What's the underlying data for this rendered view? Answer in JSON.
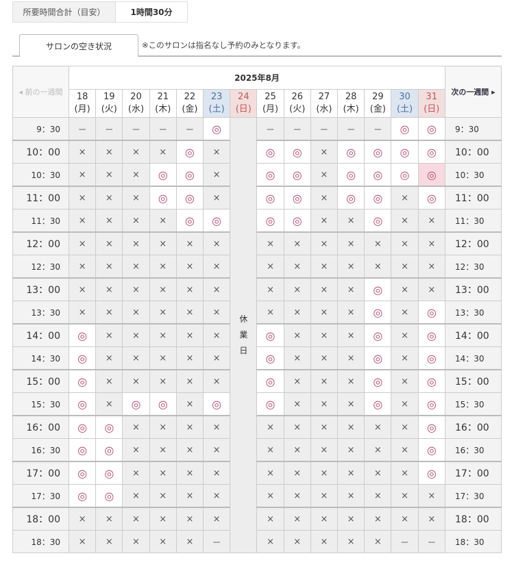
{
  "duration": {
    "label": "所要時間合計（目安）",
    "value": "1時間30分"
  },
  "tab": {
    "label": "サロンの空き状況",
    "note": "※このサロンは指名なし予約のみとなります。"
  },
  "calendar": {
    "month": "2025年8月",
    "prev_week": "◂ 前の一週間",
    "next_week": "次の一週間 ▸",
    "closed_label": "休業日",
    "closed_day": "24",
    "colors": {
      "available": "#b2486a",
      "saturday": "#4a6fa8",
      "sunday": "#c05656",
      "selected": "#f8d9e1"
    },
    "symbols": {
      "o": "◎",
      "x": "×",
      "-": "－"
    },
    "days": [
      {
        "date": "18",
        "dow": "(月)",
        "type": "weekday"
      },
      {
        "date": "19",
        "dow": "(火)",
        "type": "weekday"
      },
      {
        "date": "20",
        "dow": "(水)",
        "type": "weekday"
      },
      {
        "date": "21",
        "dow": "(木)",
        "type": "weekday"
      },
      {
        "date": "22",
        "dow": "(金)",
        "type": "weekday"
      },
      {
        "date": "23",
        "dow": "(土)",
        "type": "sat"
      },
      {
        "date": "24",
        "dow": "(日)",
        "type": "sun"
      },
      {
        "date": "25",
        "dow": "(月)",
        "type": "weekday"
      },
      {
        "date": "26",
        "dow": "(火)",
        "type": "weekday"
      },
      {
        "date": "27",
        "dow": "(水)",
        "type": "weekday"
      },
      {
        "date": "28",
        "dow": "(木)",
        "type": "weekday"
      },
      {
        "date": "29",
        "dow": "(金)",
        "type": "weekday"
      },
      {
        "date": "30",
        "dow": "(土)",
        "type": "sat"
      },
      {
        "date": "31",
        "dow": "(日)",
        "type": "sun"
      }
    ],
    "selected": {
      "time": "10：30",
      "date": "31"
    },
    "rows": [
      {
        "time": "9：30",
        "slots": [
          "-",
          "-",
          "-",
          "-",
          "-",
          "o",
          "-",
          "-",
          "-",
          "-",
          "-",
          "o",
          "o"
        ]
      },
      {
        "time": "10：00",
        "slots": [
          "x",
          "x",
          "x",
          "x",
          "o",
          "x",
          "o",
          "o",
          "x",
          "o",
          "o",
          "o",
          "o"
        ]
      },
      {
        "time": "10：30",
        "slots": [
          "x",
          "x",
          "x",
          "o",
          "o",
          "x",
          "o",
          "o",
          "x",
          "o",
          "o",
          "o",
          "o"
        ]
      },
      {
        "time": "11：00",
        "slots": [
          "x",
          "x",
          "x",
          "o",
          "o",
          "x",
          "o",
          "o",
          "x",
          "o",
          "o",
          "x",
          "o"
        ]
      },
      {
        "time": "11：30",
        "slots": [
          "x",
          "x",
          "x",
          "x",
          "o",
          "o",
          "o",
          "o",
          "x",
          "x",
          "o",
          "x",
          "x"
        ]
      },
      {
        "time": "12：00",
        "slots": [
          "x",
          "x",
          "x",
          "x",
          "x",
          "x",
          "x",
          "x",
          "x",
          "x",
          "x",
          "x",
          "x"
        ]
      },
      {
        "time": "12：30",
        "slots": [
          "x",
          "x",
          "x",
          "x",
          "x",
          "x",
          "x",
          "x",
          "x",
          "x",
          "x",
          "x",
          "x"
        ]
      },
      {
        "time": "13：00",
        "slots": [
          "x",
          "x",
          "x",
          "x",
          "x",
          "x",
          "x",
          "x",
          "x",
          "x",
          "o",
          "x",
          "x"
        ]
      },
      {
        "time": "13：30",
        "slots": [
          "x",
          "x",
          "x",
          "x",
          "x",
          "x",
          "x",
          "x",
          "x",
          "x",
          "o",
          "x",
          "o"
        ]
      },
      {
        "time": "14：00",
        "slots": [
          "o",
          "x",
          "x",
          "x",
          "x",
          "x",
          "o",
          "x",
          "x",
          "x",
          "o",
          "x",
          "o"
        ]
      },
      {
        "time": "14：30",
        "slots": [
          "o",
          "x",
          "x",
          "x",
          "x",
          "x",
          "o",
          "x",
          "x",
          "x",
          "o",
          "x",
          "o"
        ]
      },
      {
        "time": "15：00",
        "slots": [
          "o",
          "x",
          "x",
          "x",
          "x",
          "x",
          "o",
          "x",
          "x",
          "x",
          "o",
          "x",
          "o"
        ]
      },
      {
        "time": "15：30",
        "slots": [
          "o",
          "x",
          "o",
          "o",
          "x",
          "o",
          "o",
          "x",
          "x",
          "x",
          "o",
          "x",
          "o"
        ]
      },
      {
        "time": "16：00",
        "slots": [
          "o",
          "o",
          "x",
          "x",
          "x",
          "x",
          "x",
          "x",
          "x",
          "x",
          "x",
          "x",
          "o"
        ]
      },
      {
        "time": "16：30",
        "slots": [
          "o",
          "o",
          "x",
          "x",
          "x",
          "x",
          "x",
          "x",
          "x",
          "x",
          "x",
          "x",
          "o"
        ]
      },
      {
        "time": "17：00",
        "slots": [
          "o",
          "o",
          "x",
          "x",
          "x",
          "x",
          "x",
          "x",
          "x",
          "x",
          "x",
          "x",
          "o"
        ]
      },
      {
        "time": "17：30",
        "slots": [
          "o",
          "o",
          "x",
          "x",
          "x",
          "x",
          "x",
          "x",
          "x",
          "x",
          "x",
          "x",
          "x"
        ]
      },
      {
        "time": "18：00",
        "slots": [
          "x",
          "x",
          "x",
          "x",
          "x",
          "x",
          "x",
          "x",
          "x",
          "x",
          "x",
          "x",
          "x"
        ]
      },
      {
        "time": "18：30",
        "slots": [
          "x",
          "x",
          "x",
          "x",
          "x",
          "-",
          "x",
          "x",
          "x",
          "x",
          "x",
          "-",
          "-"
        ]
      }
    ]
  }
}
